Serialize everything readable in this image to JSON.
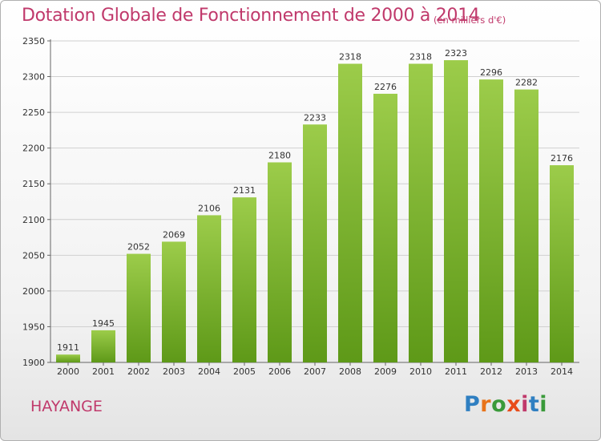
{
  "header": {
    "title": "Dotation Globale de Fonctionnement de 2000 à 2014",
    "subtitle": "(en milliers d'€)"
  },
  "footer": {
    "commune": "HAYANGE",
    "logo": "Proxiti"
  },
  "colors": {
    "title": "#c0396b",
    "bar_top": "#9ccc4a",
    "bar_bottom": "#5e9918",
    "grid": "#d0d0d0"
  },
  "chart_data": {
    "type": "bar",
    "title": "Dotation Globale de Fonctionnement de 2000 à 2014",
    "subtitle": "(en milliers d'€)",
    "categories": [
      "2000",
      "2001",
      "2002",
      "2003",
      "2004",
      "2005",
      "2006",
      "2007",
      "2008",
      "2009",
      "2010",
      "2011",
      "2012",
      "2013",
      "2014"
    ],
    "values": [
      1911,
      1945,
      2052,
      2069,
      2106,
      2131,
      2180,
      2233,
      2318,
      2276,
      2318,
      2323,
      2296,
      2282,
      2176
    ],
    "ylim": [
      1900,
      2350
    ],
    "yticks": [
      1900,
      1950,
      2000,
      2050,
      2100,
      2150,
      2200,
      2250,
      2300,
      2350
    ],
    "grid": true,
    "data_labels": true
  }
}
